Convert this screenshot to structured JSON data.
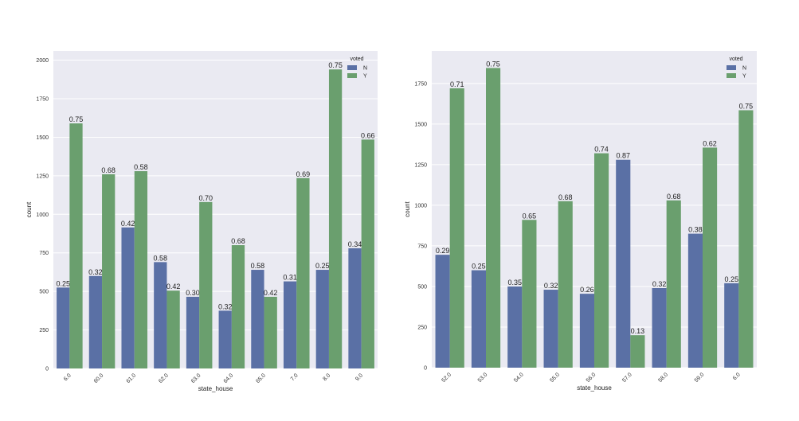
{
  "colors": {
    "background": "#eaeaf2",
    "grid": "#ffffff",
    "N": "#5a70a5",
    "Y": "#6a9f6e"
  },
  "chart_data": [
    {
      "type": "bar",
      "xlabel": "state_house",
      "ylabel": "count",
      "ylim": [
        0,
        2060
      ],
      "yticks": [
        0,
        250,
        500,
        750,
        1000,
        1250,
        1500,
        1750,
        2000
      ],
      "categories": [
        "6.0",
        "60.0",
        "61.0",
        "62.0",
        "63.0",
        "64.0",
        "65.0",
        "7.0",
        "8.0",
        "9.0"
      ],
      "legend": {
        "title": "voted",
        "position": "top-right"
      },
      "grid": true,
      "series": [
        {
          "name": "N",
          "values": [
            525,
            600,
            915,
            690,
            465,
            375,
            640,
            565,
            640,
            780
          ],
          "labels": [
            "0.25",
            "0.32",
            "0.42",
            "0.58",
            "0.30",
            "0.32",
            "0.58",
            "0.31",
            "0.25",
            "0.34"
          ]
        },
        {
          "name": "Y",
          "values": [
            1590,
            1260,
            1280,
            505,
            1080,
            800,
            465,
            1235,
            1940,
            1485
          ],
          "labels": [
            "0.75",
            "0.68",
            "0.58",
            "0.42",
            "0.70",
            "0.68",
            "0.42",
            "0.69",
            "0.75",
            "0.66"
          ]
        }
      ]
    },
    {
      "type": "bar",
      "xlabel": "state_house",
      "ylabel": "count",
      "ylim": [
        0,
        1950
      ],
      "yticks": [
        0,
        250,
        500,
        750,
        1000,
        1250,
        1500,
        1750
      ],
      "categories": [
        "52.0",
        "53.0",
        "54.0",
        "55.0",
        "56.0",
        "57.0",
        "58.0",
        "59.0",
        "6.0"
      ],
      "legend": {
        "title": "voted",
        "position": "top-right"
      },
      "grid": true,
      "series": [
        {
          "name": "N",
          "values": [
            695,
            600,
            500,
            480,
            455,
            1280,
            490,
            825,
            520
          ],
          "labels": [
            "0.29",
            "0.25",
            "0.35",
            "0.32",
            "0.26",
            "0.87",
            "0.32",
            "0.38",
            "0.25"
          ]
        },
        {
          "name": "Y",
          "values": [
            1720,
            1845,
            910,
            1025,
            1320,
            200,
            1030,
            1355,
            1585
          ],
          "labels": [
            "0.71",
            "0.75",
            "0.65",
            "0.68",
            "0.74",
            "0.13",
            "0.68",
            "0.62",
            "0.75"
          ]
        }
      ]
    }
  ]
}
